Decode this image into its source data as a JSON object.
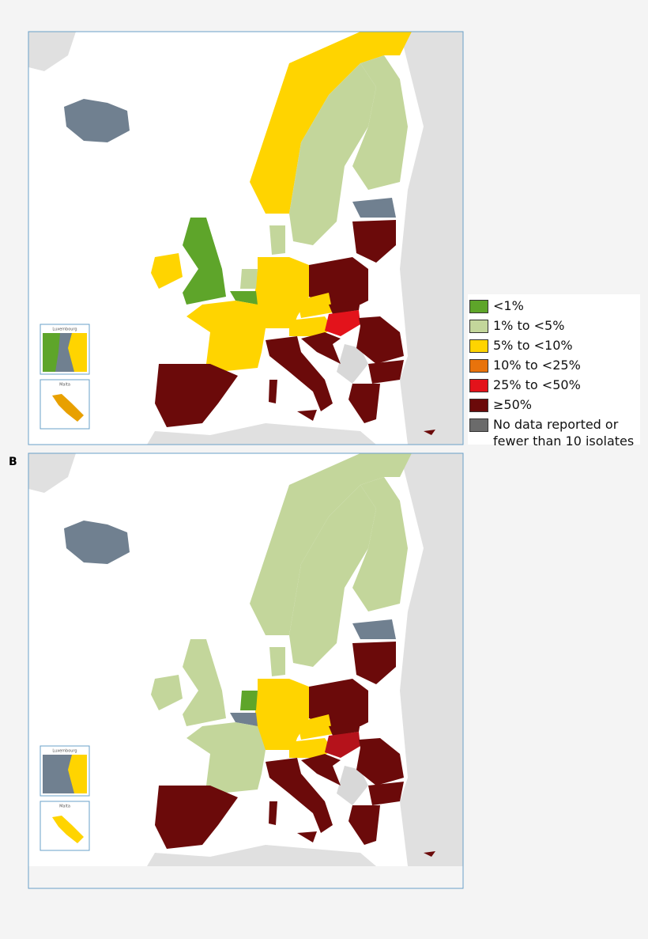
{
  "panel_label": "B",
  "insets": [
    "Luxembourg",
    "Malta"
  ],
  "legend": [
    {
      "label": "<1%",
      "color": "#5ea52a"
    },
    {
      "label": "1% to <5%",
      "color": "#c3d69b"
    },
    {
      "label": "5% to <10%",
      "color": "#ffd400"
    },
    {
      "label": "10% to <25%",
      "color": "#e8730c"
    },
    {
      "label": "25% to <50%",
      "color": "#e3131b"
    },
    {
      "label": "≥50%",
      "color": "#6b0a0a"
    },
    {
      "label": "No data reported or fewer than 10 isolates",
      "color": "#6b6b6b"
    }
  ]
}
